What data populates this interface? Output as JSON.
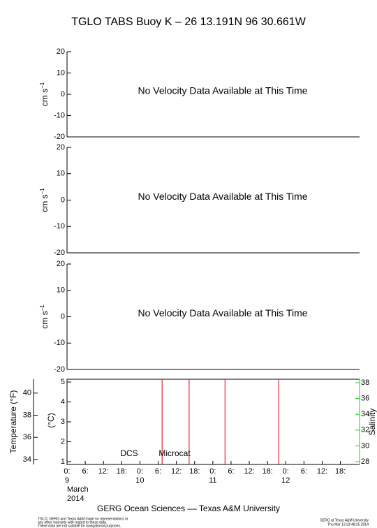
{
  "chart_data": [
    {
      "type": "empty",
      "title": "TGLO TABS Buoy K – 26 13.191N  96 30.661W",
      "ylabel": "cm s",
      "ylabel_sup": "−1",
      "message": "No Velocity Data Available at This Time",
      "ylim": [
        -20,
        20
      ],
      "yticks": [
        20,
        10,
        0,
        -10,
        -20
      ]
    },
    {
      "type": "empty",
      "ylabel": "cm s",
      "ylabel_sup": "−1",
      "message": "No Velocity Data Available at This Time",
      "ylim": [
        -20,
        20
      ],
      "yticks": [
        20,
        10,
        0,
        -10,
        -20
      ]
    },
    {
      "type": "empty",
      "ylabel": "cm s",
      "ylabel_sup": "−1",
      "message": "No Velocity Data Available at This Time",
      "ylim": [
        -20,
        20
      ],
      "yticks": [
        20,
        10,
        0,
        -10,
        -20
      ]
    },
    {
      "type": "spikes",
      "ylabel": "(°C)",
      "ylim": [
        0.86,
        5.14
      ],
      "yticks": [
        5,
        4,
        3,
        2,
        1
      ],
      "y2label": "Temperature (°F)",
      "y2lim": [
        33.55,
        41.25
      ],
      "y2ticks": [
        40,
        38,
        36,
        34
      ],
      "y3label": "Salinity",
      "y3lim": [
        27.65,
        38.44
      ],
      "y3ticks": [
        38,
        36,
        34,
        32,
        30,
        28
      ],
      "y3color": "#00e000",
      "xlim": [
        0,
        96.3
      ],
      "xticks": [
        {
          "value": 0,
          "label": "0:"
        },
        {
          "value": 6,
          "label": "6:"
        },
        {
          "value": 12,
          "label": "12:"
        },
        {
          "value": 18,
          "label": "18:"
        },
        {
          "value": 24,
          "label": "0:"
        },
        {
          "value": 30,
          "label": "6:"
        },
        {
          "value": 36,
          "label": "12:"
        },
        {
          "value": 42,
          "label": "18:"
        },
        {
          "value": 48,
          "label": "0:"
        },
        {
          "value": 54,
          "label": "6:"
        },
        {
          "value": 60,
          "label": "12:"
        },
        {
          "value": 66,
          "label": "18:"
        },
        {
          "value": 72,
          "label": "0:"
        },
        {
          "value": 78,
          "label": "6:"
        },
        {
          "value": 84,
          "label": "12:"
        },
        {
          "value": 90,
          "label": "18:"
        }
      ],
      "days": [
        {
          "value": 0,
          "label": "9"
        },
        {
          "value": 24,
          "label": "10"
        },
        {
          "value": 48,
          "label": "11"
        },
        {
          "value": 72,
          "label": "12"
        }
      ],
      "month": "March",
      "year": "2014",
      "series": [
        {
          "name": "DCS",
          "color": "#000000",
          "x": []
        },
        {
          "name": "Microcat",
          "color": "#e00000",
          "x": [
            31.3,
            40.2,
            52,
            69.7
          ]
        }
      ],
      "footer": "GERG Ocean Sciences –– Texas A&M University",
      "disclaimer": [
        "TGLO, GERG and Texas A&M make no representations or",
        "any other warranty with regard to these data.",
        "These data are not suitable for navigational purposes."
      ],
      "credit": [
        "GERG at Texas A&M University",
        "Thu Mar 13 23:48:25 2014"
      ]
    }
  ]
}
